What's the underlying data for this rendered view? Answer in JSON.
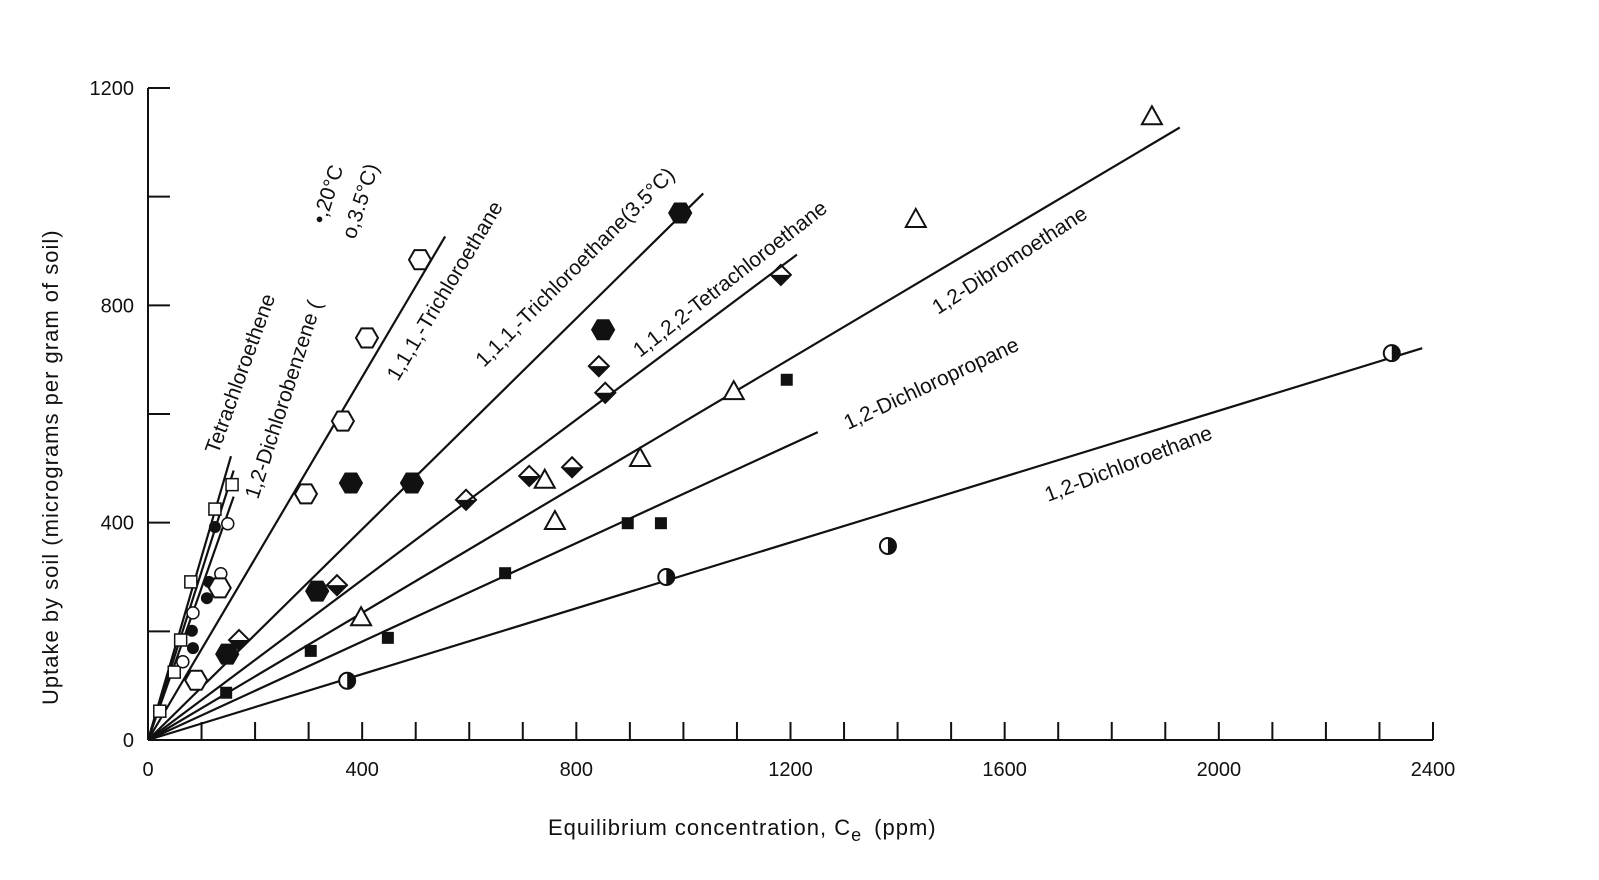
{
  "chart_data": {
    "type": "scatter",
    "xlabel": "Equilibrium concentration, C",
    "xlabel_sub": "e",
    "xlabel_unit": "(ppm)",
    "ylabel": "Uptake by soil  (micrograms per gram of soil)",
    "xlim": [
      0,
      2400
    ],
    "ylim": [
      0,
      1200
    ],
    "xticks": [
      0,
      400,
      800,
      1200,
      1600,
      2000,
      2400
    ],
    "yticks": [
      0,
      400,
      800,
      1200
    ],
    "grid": false,
    "series": [
      {
        "name": "Tetrachloroethene",
        "marker": "small-open-square",
        "slope": 3.37,
        "line_end_x": 155,
        "points": [
          [
            22,
            53
          ],
          [
            49,
            125
          ],
          [
            61,
            184
          ],
          [
            80,
            291
          ],
          [
            125,
            425
          ],
          [
            157,
            470
          ]
        ]
      },
      {
        "name": "1,2-Dichlorobenzene, 20°C",
        "marker": "small-filled-circle",
        "slope": 3.1,
        "line_end_x": 160,
        "points": [
          [
            84,
            169
          ],
          [
            82,
            201
          ],
          [
            110,
            261
          ],
          [
            114,
            291
          ],
          [
            125,
            392
          ]
        ]
      },
      {
        "name": "1,2-Dichlorobenzene, 3.5°C",
        "marker": "small-open-circle",
        "slope": 2.8,
        "line_end_x": 160,
        "points": [
          [
            65,
            144
          ],
          [
            84,
            234
          ],
          [
            129,
            276
          ],
          [
            136,
            306
          ],
          [
            149,
            398
          ]
        ]
      },
      {
        "name": "1,1,1,-Trichloroethane",
        "marker": "open-hexagon",
        "slope": 1.67,
        "line_end_x": 555,
        "points": [
          [
            90,
            110
          ],
          [
            134,
            280
          ],
          [
            295,
            453
          ],
          [
            364,
            587
          ],
          [
            409,
            740
          ],
          [
            508,
            884
          ]
        ]
      },
      {
        "name": "1,1,1,-Trichloroethane(3.5°C)",
        "marker": "filled-hexagon",
        "slope": 0.97,
        "line_end_x": 1037,
        "points": [
          [
            148,
            158
          ],
          [
            316,
            274
          ],
          [
            379,
            473
          ],
          [
            493,
            473
          ],
          [
            850,
            755
          ],
          [
            994,
            970
          ]
        ]
      },
      {
        "name": "1,1,2,2-Tetrachloroethane",
        "marker": "half-diamond",
        "slope": 0.737,
        "line_end_x": 1212,
        "points": [
          [
            170,
            184
          ],
          [
            353,
            285
          ],
          [
            594,
            442
          ],
          [
            712,
            486
          ],
          [
            792,
            502
          ],
          [
            854,
            639
          ],
          [
            842,
            688
          ],
          [
            1182,
            856
          ]
        ]
      },
      {
        "name": "1,2-Dibromoethane",
        "marker": "open-triangle",
        "slope": 0.585,
        "line_end_x": 1927,
        "points": [
          [
            398,
            226
          ],
          [
            760,
            403
          ],
          [
            741,
            479
          ],
          [
            919,
            519
          ],
          [
            1094,
            642
          ],
          [
            1434,
            959
          ],
          [
            1875,
            1148
          ]
        ]
      },
      {
        "name": "1,2-Dichloropropane",
        "marker": "filled-square",
        "slope": 0.453,
        "line_end_x": 1251,
        "points": [
          [
            146,
            87
          ],
          [
            304,
            164
          ],
          [
            448,
            188
          ],
          [
            667,
            307
          ],
          [
            896,
            399
          ],
          [
            958,
            399
          ],
          [
            1193,
            663
          ]
        ]
      },
      {
        "name": "1,2-Dichloroethane",
        "marker": "half-circle",
        "slope": 0.303,
        "line_end_x": 2380,
        "points": [
          [
            372,
            109
          ],
          [
            968,
            300
          ],
          [
            1382,
            357
          ],
          [
            2323,
            712
          ]
        ]
      }
    ],
    "annotations": {
      "tetrachloroethene": "Tetrachloroethene",
      "dichlorobenzene": "1,2-Dichlorobenzene (",
      "dcb_20": "•,20°C",
      "dcb_35": "o,3.5°C)",
      "tca": "1,1,1,-Trichloroethane",
      "tca35": "1,1,1,-Trichloroethane(3.5°C)",
      "pce": "1,1,2,2-Tetrachloroethane",
      "dbe": "1,2-Dibromoethane",
      "dcp": "1,2-Dichloropropane",
      "dce": "1,2-Dichloroethane"
    }
  }
}
